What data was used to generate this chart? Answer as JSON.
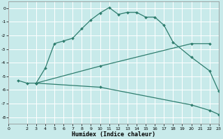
{
  "xlabel": "Humidex (Indice chaleur)",
  "bg_color": "#c8eaea",
  "grid_color": "#ffffff",
  "line_color": "#2e7d6e",
  "xlim": [
    0,
    23
  ],
  "ylim": [
    -8.5,
    0.5
  ],
  "yticks": [
    0,
    -1,
    -2,
    -3,
    -4,
    -5,
    -6,
    -7,
    -8
  ],
  "xticks": [
    0,
    2,
    3,
    4,
    5,
    6,
    7,
    8,
    9,
    10,
    11,
    12,
    13,
    14,
    15,
    16,
    17,
    18,
    19,
    20,
    21,
    22,
    23
  ],
  "line1_x": [
    1,
    2,
    3,
    4,
    5,
    6,
    7,
    8,
    9,
    10,
    11,
    12,
    13,
    14,
    15,
    16,
    17,
    18,
    20,
    22,
    23
  ],
  "line1_y": [
    -5.3,
    -5.5,
    -5.5,
    -4.4,
    -2.6,
    -2.4,
    -2.2,
    -1.5,
    -0.85,
    -0.35,
    0.05,
    -0.45,
    -0.3,
    -0.3,
    -0.65,
    -0.65,
    -1.25,
    -2.5,
    -3.6,
    -4.6,
    -6.1
  ],
  "line2_x": [
    3,
    10,
    20,
    22
  ],
  "line2_y": [
    -5.5,
    -4.25,
    -2.6,
    -2.6
  ],
  "line3_x": [
    3,
    10,
    20,
    22,
    23
  ],
  "line3_y": [
    -5.5,
    -5.8,
    -7.1,
    -7.5,
    -7.8
  ]
}
